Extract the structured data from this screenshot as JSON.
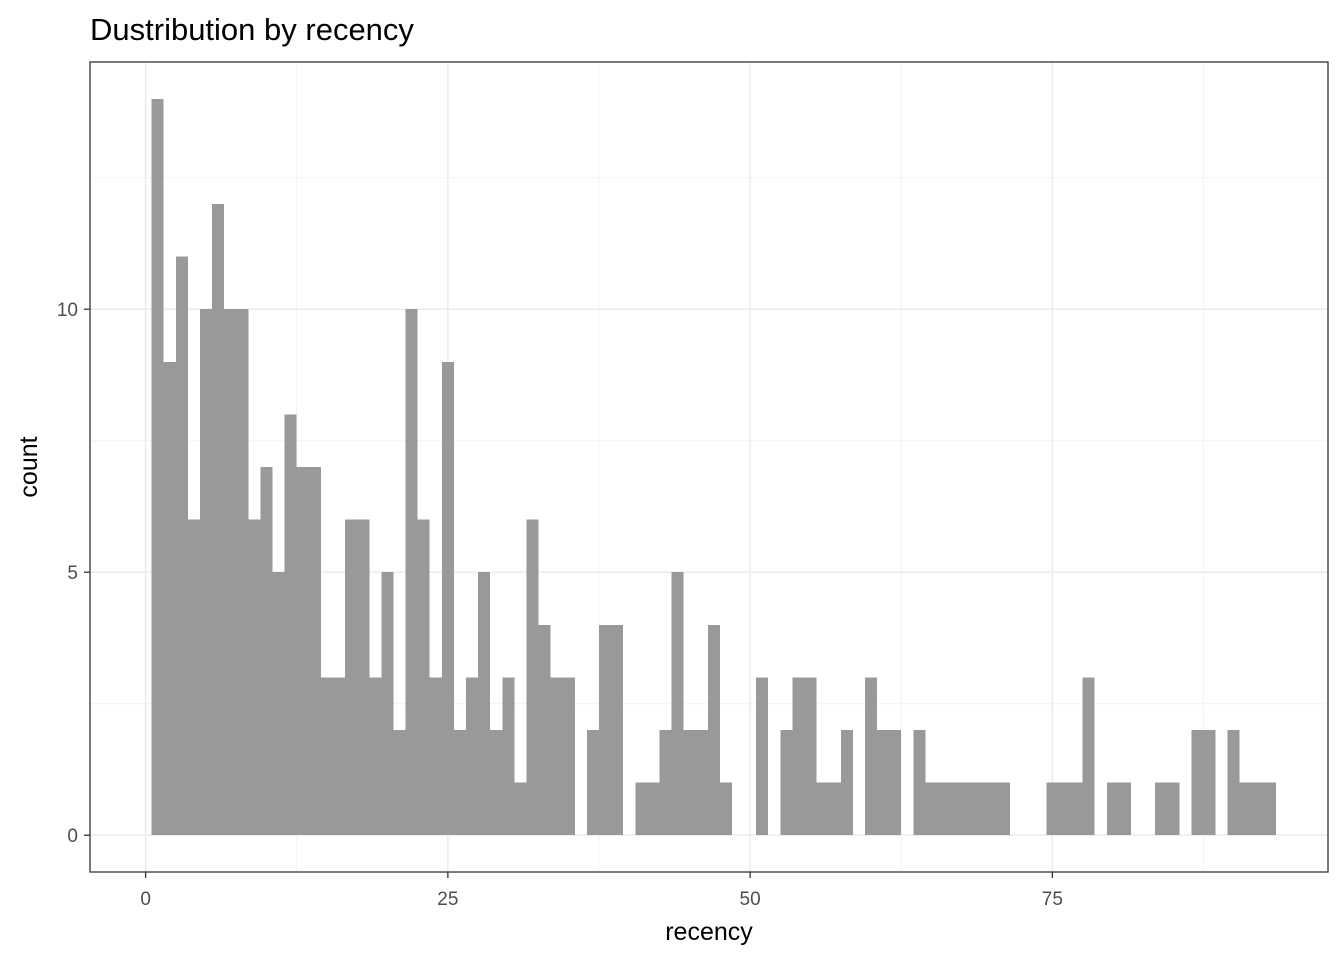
{
  "chart_data": {
    "type": "bar",
    "title": "Dustribution by recency",
    "xlabel": "recency",
    "ylabel": "count",
    "xlim": [
      -4.6,
      97.8
    ],
    "ylim": [
      -0.7,
      14.7
    ],
    "x_ticks": [
      0,
      25,
      50,
      75
    ],
    "x_tick_labels": [
      "0",
      "25",
      "50",
      "75"
    ],
    "y_ticks": [
      0,
      5,
      10
    ],
    "y_tick_labels": [
      "0",
      "5",
      "10"
    ],
    "grid": true,
    "bin_width": 1,
    "colors": {
      "bar": "#999999",
      "panel_border": "#333333",
      "grid_major": "#ebebeb",
      "grid_minor": "#f3f3f3"
    },
    "x": [
      1,
      2,
      3,
      4,
      5,
      6,
      7,
      8,
      9,
      10,
      11,
      12,
      13,
      14,
      15,
      16,
      17,
      18,
      19,
      20,
      21,
      22,
      23,
      24,
      25,
      26,
      27,
      28,
      29,
      30,
      31,
      32,
      33,
      34,
      35,
      36,
      37,
      38,
      39,
      40,
      41,
      42,
      43,
      44,
      45,
      46,
      47,
      48,
      49,
      50,
      51,
      52,
      53,
      54,
      55,
      56,
      57,
      58,
      59,
      60,
      61,
      62,
      63,
      64,
      65,
      66,
      67,
      68,
      69,
      70,
      71,
      72,
      73,
      74,
      75,
      76,
      77,
      78,
      79,
      80,
      81,
      82,
      83,
      84,
      85,
      86,
      87,
      88,
      89,
      90,
      91,
      92,
      93
    ],
    "values": [
      14,
      9,
      11,
      6,
      10,
      12,
      10,
      10,
      6,
      7,
      5,
      8,
      7,
      7,
      3,
      3,
      6,
      6,
      3,
      5,
      2,
      10,
      6,
      3,
      9,
      2,
      3,
      5,
      2,
      3,
      1,
      6,
      4,
      3,
      3,
      0,
      2,
      4,
      4,
      0,
      1,
      1,
      2,
      5,
      2,
      2,
      4,
      1,
      0,
      0,
      3,
      0,
      2,
      3,
      3,
      1,
      1,
      2,
      0,
      3,
      2,
      2,
      0,
      2,
      1,
      1,
      1,
      1,
      1,
      1,
      1,
      0,
      0,
      0,
      1,
      1,
      1,
      3,
      0,
      1,
      1,
      0,
      0,
      1,
      1,
      0,
      2,
      2,
      0,
      2,
      1,
      1,
      1
    ]
  }
}
